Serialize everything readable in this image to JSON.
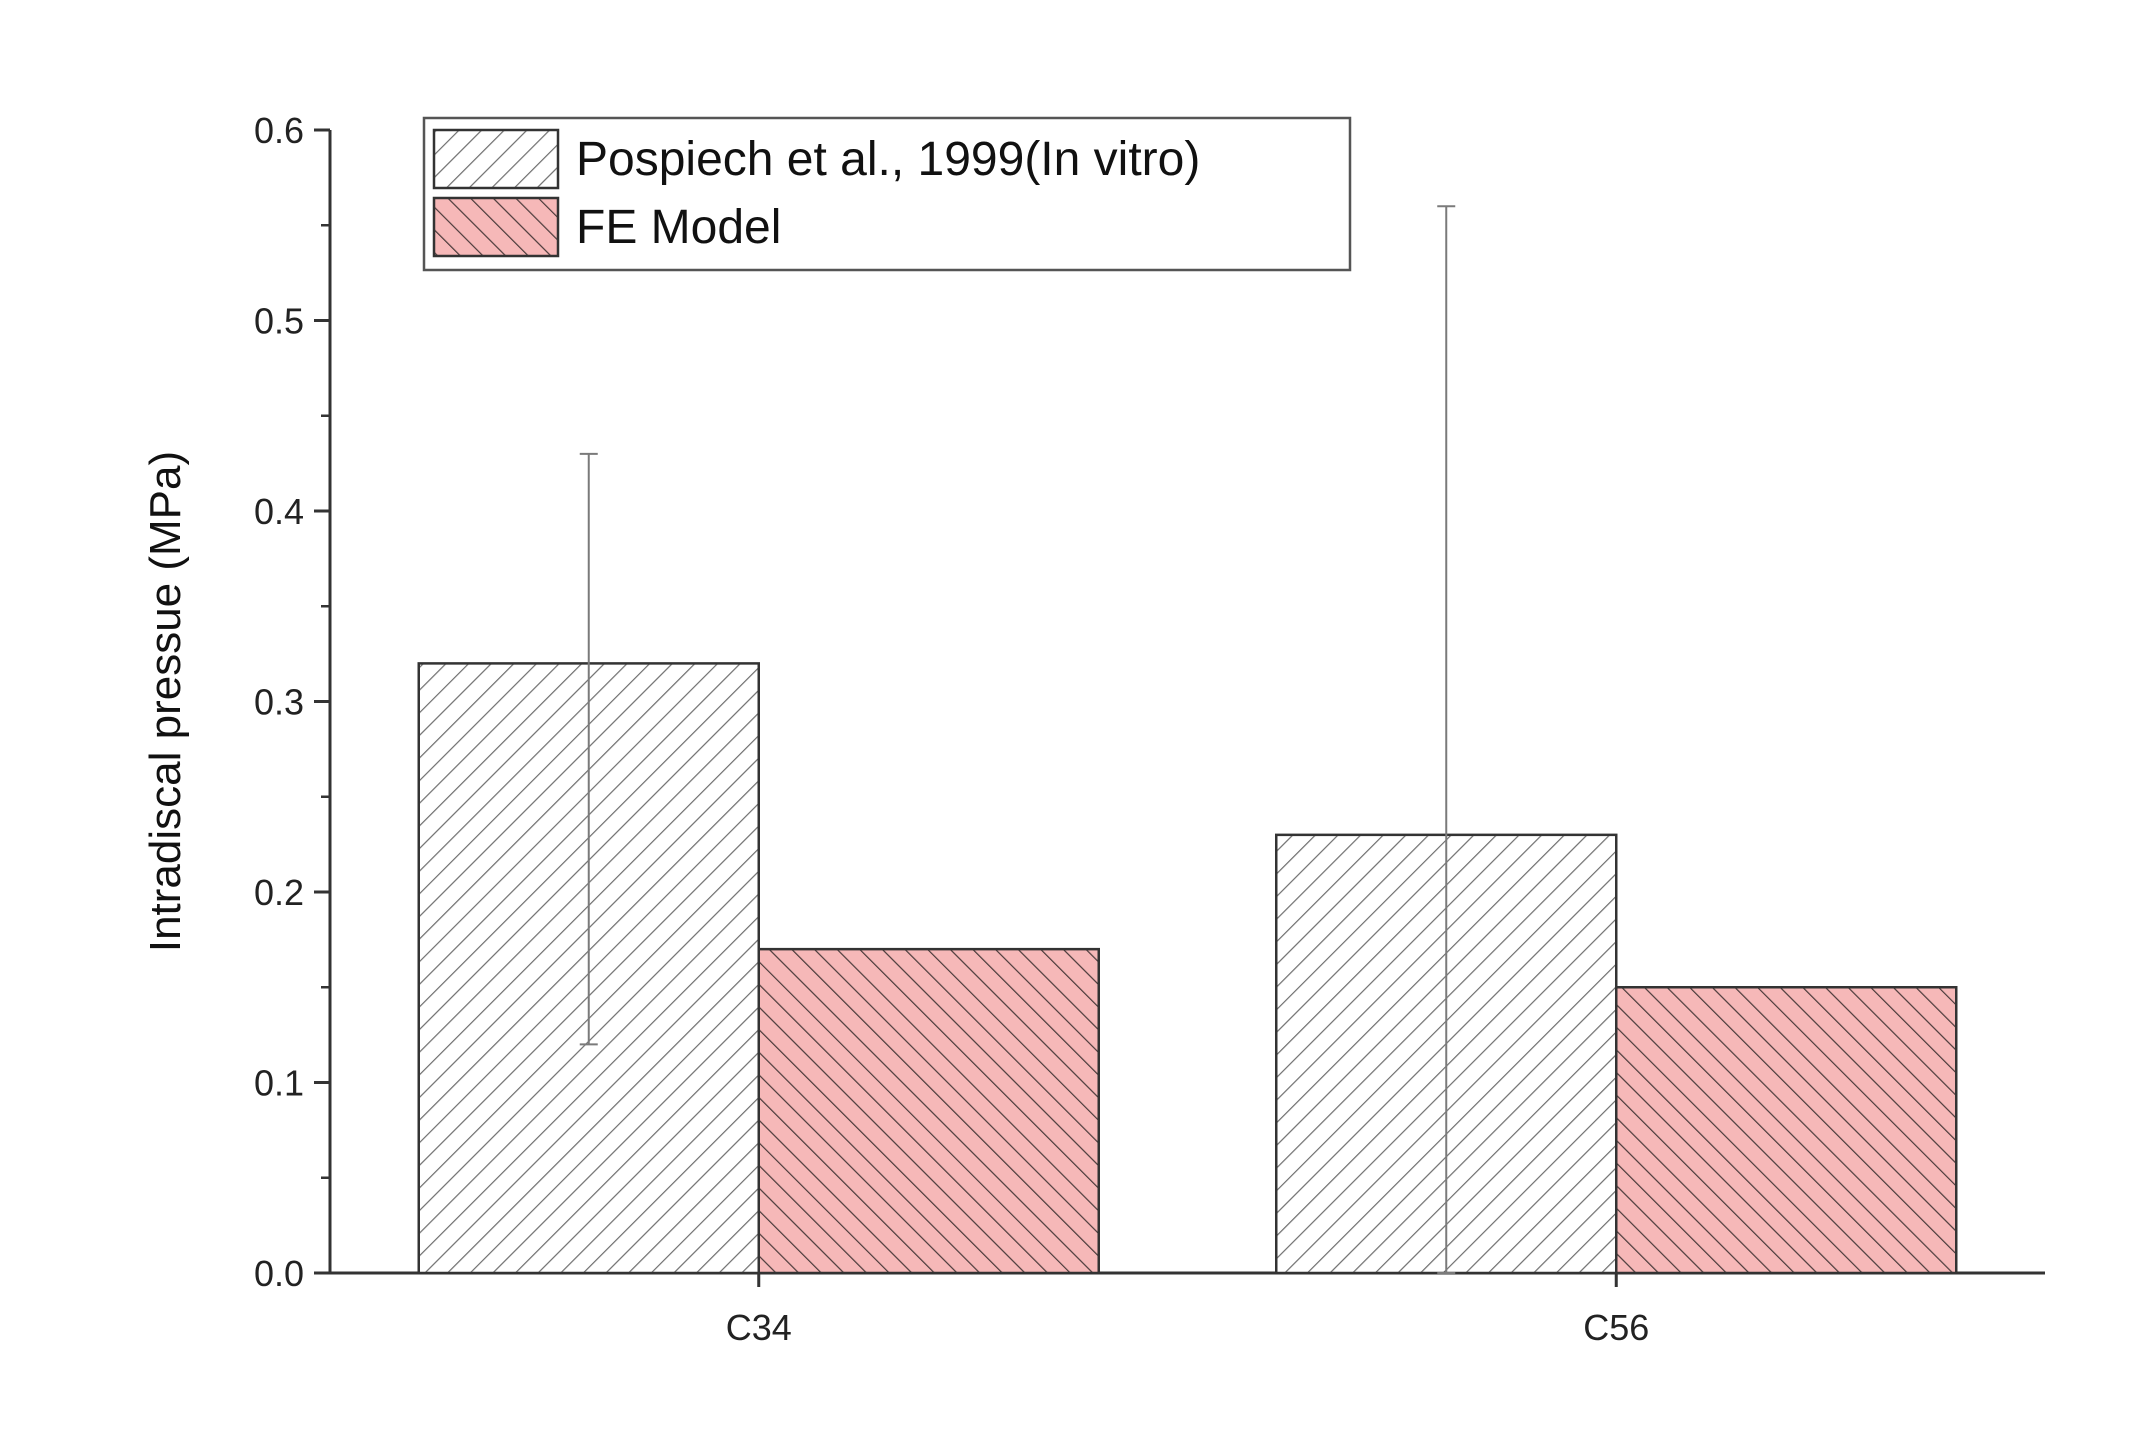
{
  "chart_data": {
    "type": "bar",
    "title": "",
    "xlabel": "",
    "ylabel": "Intradiscal pressue (MPa)",
    "categories": [
      "C34",
      "C56"
    ],
    "ylim": [
      0,
      0.6
    ],
    "yticks": [
      "0.0",
      "0.1",
      "0.2",
      "0.3",
      "0.4",
      "0.5",
      "0.6"
    ],
    "grid": false,
    "legend_position": "top-left",
    "series": [
      {
        "name": "Pospiech et al., 1999(In vitro)",
        "values": [
          0.32,
          0.23
        ],
        "error_low": [
          0.12,
          0.0
        ],
        "error_high": [
          0.43,
          0.56
        ],
        "fill": "#ffffff",
        "hatch_color": "#6e6e6e"
      },
      {
        "name": "FE Model",
        "values": [
          0.17,
          0.15
        ],
        "fill": "#f6b8b8",
        "hatch_color": "#4a3a3a"
      }
    ]
  }
}
